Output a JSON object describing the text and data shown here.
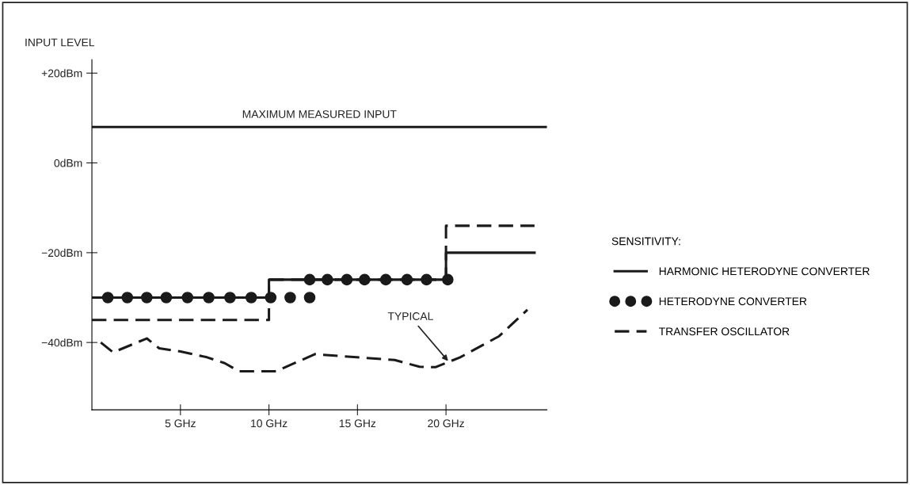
{
  "chart_data": {
    "type": "line",
    "ylabel": "INPUT LEVEL",
    "legend_title": "SENSITIVITY:",
    "legend": "right",
    "grid": false,
    "xlim": [
      0,
      25.7
    ],
    "xticks": [
      {
        "value": 5,
        "label": "5 GHz"
      },
      {
        "value": 10,
        "label": "10 GHz"
      },
      {
        "value": 15,
        "label": "15 GHz"
      },
      {
        "value": 20,
        "label": "20 GHz"
      }
    ],
    "ylim": [
      -55,
      23
    ],
    "yticks": [
      {
        "value": 20,
        "label": "+20dBm"
      },
      {
        "value": 0,
        "label": "0dBm"
      },
      {
        "value": -20,
        "label": "−20dBm"
      },
      {
        "value": -40,
        "label": "−40dBm"
      }
    ],
    "ref_lines": [
      {
        "axis": "y",
        "value": 8,
        "label": "MAXIMUM MEASURED INPUT",
        "color": "#1a1a1a",
        "line_style": "solid"
      }
    ],
    "series": [
      {
        "name": "HARMONIC HETERODYNE CONVERTER",
        "color": "#1a1a1a",
        "line_style": "solid",
        "marker": "none",
        "x": [
          0,
          10,
          10,
          20,
          20,
          25
        ],
        "values": [
          -30,
          -30,
          -26,
          -26,
          -20,
          -20
        ]
      },
      {
        "name": "HETERODYNE CONVERTER",
        "type": "scatter",
        "color": "#1a1a1a",
        "marker": "circle",
        "x": [
          0.9,
          2.0,
          3.1,
          4.2,
          5.4,
          6.6,
          7.8,
          9.0,
          10.1,
          11.2,
          12.3,
          12.3,
          13.3,
          14.4,
          15.4,
          16.6,
          17.8,
          18.9,
          20.1
        ],
        "values": [
          -30,
          -30,
          -30,
          -30,
          -30,
          -30,
          -30,
          -30,
          -30,
          -30,
          -30,
          -26,
          -26,
          -26,
          -26,
          -26,
          -26,
          -26,
          -26
        ]
      },
      {
        "name": "TRANSFER OSCILLATOR",
        "color": "#1a1a1a",
        "line_style": "dashed",
        "marker": "none",
        "x": [
          0,
          10,
          10,
          20,
          20,
          25
        ],
        "values": [
          -35,
          -35,
          -26,
          -26,
          -14,
          -14
        ]
      },
      {
        "color": "#1a1a1a",
        "line_style": "dashed",
        "marker": "none",
        "x": [
          0.5,
          1.2,
          3.1,
          3.8,
          5.0,
          6.5,
          7.5,
          8.3,
          10.4,
          12.6,
          17.1,
          18.5,
          19.4,
          20.8,
          23.0,
          24.6
        ],
        "values": [
          -40,
          -42.2,
          -39.1,
          -41.3,
          -42,
          -43.3,
          -44.6,
          -46.4,
          -46.4,
          -42.6,
          -43.9,
          -45.4,
          -45.5,
          -43.3,
          -38.6,
          -32.7
        ]
      }
    ],
    "annotations": [
      {
        "text": "TYPICAL",
        "x": 20.2,
        "y": -44.5
      }
    ]
  }
}
